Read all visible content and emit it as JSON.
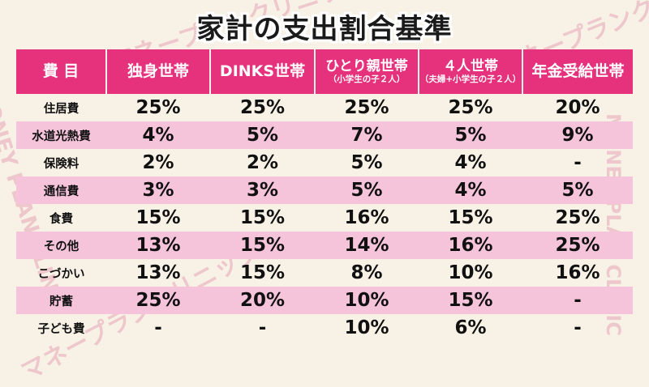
{
  "title": "家計の支出割合基準",
  "watermark": {
    "text": "マネープランクリニック",
    "subtext": "MONEY PLAN CLINIC",
    "color": "#e7a6b8"
  },
  "colors": {
    "header_bg": "#e6317c",
    "stripe_bg": "#f5c3da",
    "page_bg": "#f7f1e6"
  },
  "table": {
    "headers": [
      {
        "main": "費 目",
        "sub": ""
      },
      {
        "main": "独身世帯",
        "sub": ""
      },
      {
        "main": "DINKS世帯",
        "sub": ""
      },
      {
        "main": "ひとり親世帯",
        "sub": "（小学生の子２人）"
      },
      {
        "main": "４人世帯",
        "sub": "（夫婦+小学生の子２人）"
      },
      {
        "main": "年金受給世帯",
        "sub": ""
      }
    ],
    "rows": [
      {
        "label": "住居費",
        "values": [
          "25%",
          "25%",
          "25%",
          "25%",
          "20%"
        ]
      },
      {
        "label": "水道光熱費",
        "values": [
          "4%",
          "5%",
          "7%",
          "5%",
          "9%"
        ]
      },
      {
        "label": "保険料",
        "values": [
          "2%",
          "2%",
          "5%",
          "4%",
          "-"
        ]
      },
      {
        "label": "通信費",
        "values": [
          "3%",
          "3%",
          "5%",
          "4%",
          "5%"
        ]
      },
      {
        "label": "食費",
        "values": [
          "15%",
          "15%",
          "16%",
          "15%",
          "25%"
        ]
      },
      {
        "label": "その他",
        "values": [
          "13%",
          "15%",
          "14%",
          "16%",
          "25%"
        ]
      },
      {
        "label": "こづかい",
        "values": [
          "13%",
          "15%",
          "8%",
          "10%",
          "16%"
        ]
      },
      {
        "label": "貯蓄",
        "values": [
          "25%",
          "20%",
          "10%",
          "15%",
          "-"
        ]
      },
      {
        "label": "子ども費",
        "values": [
          "-",
          "-",
          "10%",
          "6%",
          "-"
        ]
      }
    ]
  }
}
